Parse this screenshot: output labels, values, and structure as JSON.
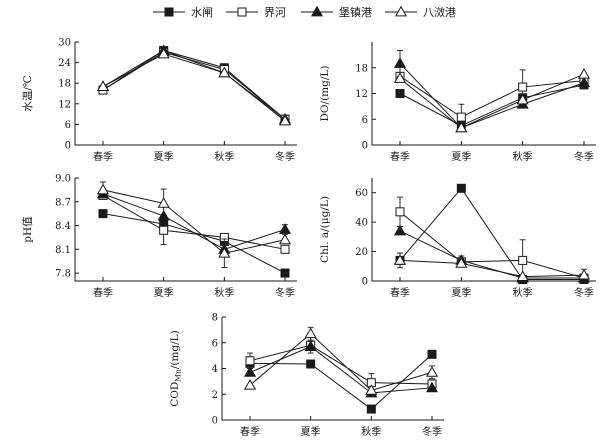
{
  "legend": {
    "items": [
      {
        "name": "水闸",
        "marker": "filled-square"
      },
      {
        "name": "界河",
        "marker": "open-square"
      },
      {
        "name": "堡镇港",
        "marker": "filled-triangle"
      },
      {
        "name": "八滧港",
        "marker": "open-triangle"
      }
    ]
  },
  "chart_data": [
    {
      "type": "line",
      "categories": [
        "春季",
        "夏季",
        "秋季",
        "冬季"
      ],
      "ylabel": "水温/℃",
      "ylim": [
        0,
        30
      ],
      "yticks": [
        0,
        6,
        12,
        18,
        24,
        30
      ],
      "series": [
        {
          "name": "水闸",
          "values": [
            16,
            27.5,
            22.5,
            7.5
          ],
          "err": [
            0,
            0,
            0,
            0
          ]
        },
        {
          "name": "界河",
          "values": [
            16,
            27,
            22,
            7.5
          ],
          "err": [
            0,
            0,
            0,
            0
          ]
        },
        {
          "name": "堡镇港",
          "values": [
            17,
            27.5,
            21,
            7.5
          ],
          "err": [
            0,
            0,
            0,
            0
          ]
        },
        {
          "name": "八滧港",
          "values": [
            17,
            26.5,
            21,
            7
          ],
          "err": [
            0,
            0,
            0,
            0
          ]
        }
      ]
    },
    {
      "type": "line",
      "categories": [
        "春季",
        "夏季",
        "秋季",
        "冬季"
      ],
      "ylabel": "DO/(mg/L)",
      "ylim": [
        0,
        24
      ],
      "yticks": [
        0,
        6,
        12,
        18
      ],
      "series": [
        {
          "name": "水闸",
          "values": [
            12,
            4.5,
            11,
            14
          ],
          "err": [
            0,
            0,
            0,
            0
          ]
        },
        {
          "name": "界河",
          "values": [
            16,
            6.5,
            13.5,
            15
          ],
          "err": [
            0,
            3,
            4,
            0
          ]
        },
        {
          "name": "堡镇港",
          "values": [
            19,
            4,
            9.5,
            14.5
          ],
          "err": [
            3,
            0,
            0,
            0
          ]
        },
        {
          "name": "八滧港",
          "values": [
            15.5,
            4,
            10.5,
            16.5
          ],
          "err": [
            0,
            0,
            0,
            0
          ]
        }
      ]
    },
    {
      "type": "line",
      "categories": [
        "春季",
        "夏季",
        "秋季",
        "冬季"
      ],
      "ylabel": "pH值",
      "ylim": [
        7.7,
        9.0
      ],
      "yticks": [
        7.8,
        8.1,
        8.4,
        8.7,
        9.0
      ],
      "series": [
        {
          "name": "水闸",
          "values": [
            8.55,
            8.42,
            8.2,
            7.8
          ],
          "err": [
            0,
            0,
            0,
            0
          ]
        },
        {
          "name": "界河",
          "values": [
            8.78,
            8.34,
            8.25,
            8.1
          ],
          "err": [
            0,
            0.18,
            0,
            0
          ]
        },
        {
          "name": "堡镇港",
          "values": [
            8.8,
            8.52,
            8.1,
            8.35
          ],
          "err": [
            0,
            0,
            0,
            0.06
          ]
        },
        {
          "name": "八滧港",
          "values": [
            8.85,
            8.68,
            8.05,
            8.22
          ],
          "err": [
            0.1,
            0.18,
            0.18,
            0
          ]
        }
      ]
    },
    {
      "type": "line",
      "categories": [
        "春季",
        "夏季",
        "秋季",
        "冬季"
      ],
      "ylabel": "Chl. a/(μg/L)",
      "ylim": [
        0,
        70
      ],
      "yticks": [
        0,
        20,
        40,
        60
      ],
      "series": [
        {
          "name": "水闸",
          "values": [
            14,
            63,
            1,
            1
          ],
          "err": [
            0,
            0,
            0,
            0
          ]
        },
        {
          "name": "界河",
          "values": [
            47,
            13,
            14,
            2
          ],
          "err": [
            10,
            0,
            14,
            0
          ]
        },
        {
          "name": "堡镇港",
          "values": [
            34,
            14,
            2,
            2
          ],
          "err": [
            0,
            3,
            0,
            0
          ]
        },
        {
          "name": "八滧港",
          "values": [
            14,
            12,
            3,
            4
          ],
          "err": [
            5,
            0,
            0,
            4
          ]
        }
      ]
    },
    {
      "type": "line",
      "categories": [
        "春季",
        "夏季",
        "秋季",
        "冬季"
      ],
      "ylabel_parts": [
        "COD",
        "Mn",
        "/(mg/L)"
      ],
      "ylim": [
        0,
        8
      ],
      "yticks": [
        0,
        2,
        4,
        6,
        8
      ],
      "series": [
        {
          "name": "水闸",
          "values": [
            4.4,
            4.35,
            0.85,
            5.1
          ],
          "err": [
            0,
            0,
            0,
            0
          ]
        },
        {
          "name": "界河",
          "values": [
            4.6,
            5.8,
            2.9,
            2.8
          ],
          "err": [
            0.6,
            0.6,
            0.7,
            0
          ]
        },
        {
          "name": "堡镇港",
          "values": [
            3.7,
            5.7,
            2.1,
            2.5
          ],
          "err": [
            0,
            0,
            0,
            0
          ]
        },
        {
          "name": "八滧港",
          "values": [
            2.7,
            6.7,
            2.3,
            3.7
          ],
          "err": [
            0,
            0.5,
            0,
            0.5
          ]
        }
      ]
    }
  ]
}
